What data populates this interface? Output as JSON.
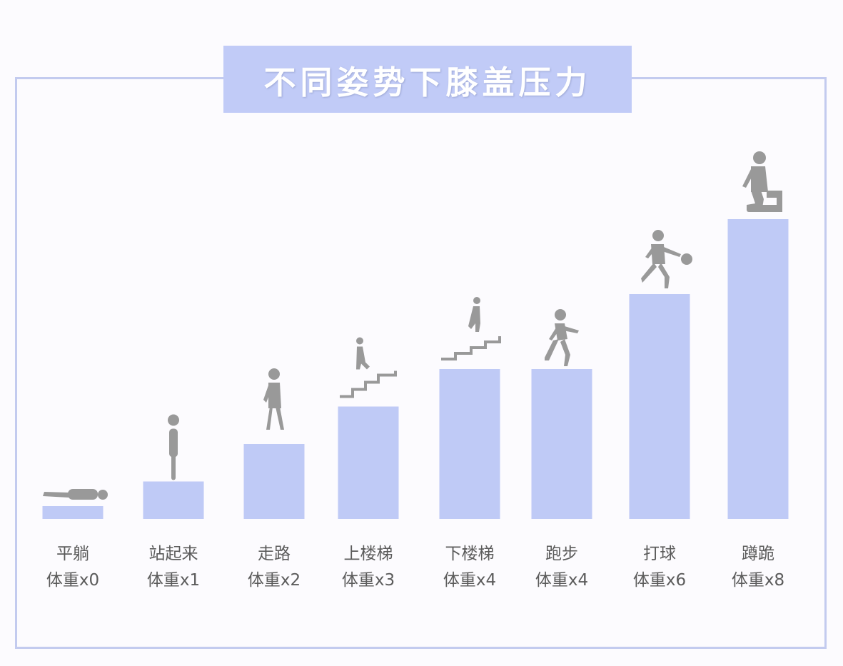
{
  "title": "不同姿势下膝盖压力",
  "colors": {
    "bar": "#bfcaf6",
    "figure": "#999999",
    "frame": "#c3cbef",
    "title_bg": "#c1cbf7",
    "title_text": "#ffffff",
    "label": "#5b5b5b"
  },
  "chart_data": {
    "type": "bar",
    "title": "不同姿势下膝盖压力",
    "xlabel": "",
    "ylabel": "",
    "ylim": [
      0,
      8
    ],
    "grid": false,
    "categories": [
      "平躺",
      "站起来",
      "走路",
      "上楼梯",
      "下楼梯",
      "跑步",
      "打球",
      "蹲跪"
    ],
    "value_labels": [
      "体重x0",
      "体重x1",
      "体重x2",
      "体重x3",
      "体重x4",
      "体重x4",
      "体重x6",
      "体重x8"
    ],
    "values": [
      0,
      1,
      2,
      3,
      4,
      4,
      6,
      8
    ],
    "icons": [
      "lying-person-icon",
      "standing-person-icon",
      "walking-person-icon",
      "climbing-stairs-icon",
      "descending-stairs-icon",
      "running-person-icon",
      "ball-player-icon",
      "squatting-person-icon"
    ]
  }
}
